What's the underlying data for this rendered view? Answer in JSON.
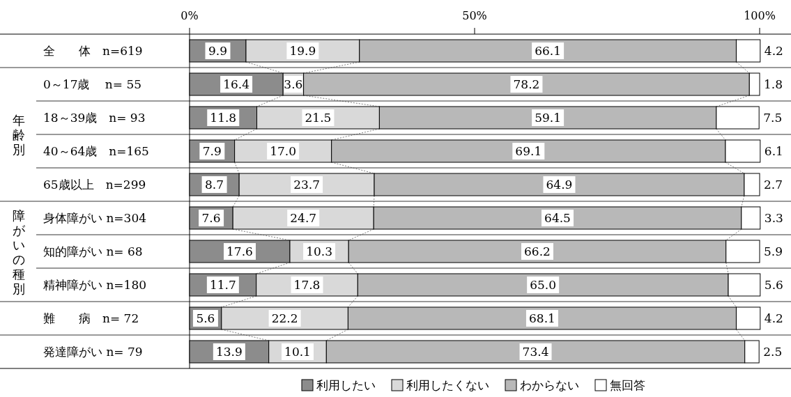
{
  "chart_data": {
    "type": "bar",
    "orientation": "horizontal",
    "stacked": true,
    "legend": "bottom",
    "categories": [
      "全　　体　n=619",
      "0～17歳　 n= 55",
      "18～39歳　n= 93",
      "40～64歳　n=165",
      "65歳以上　n=299",
      "身体障がい n=304",
      "知的障がい n= 68",
      "精神障がい n=180",
      "難　　病　n= 72",
      "発達障がい n= 79"
    ],
    "xlim": [
      0,
      100
    ],
    "xticks": [
      {
        "value": 0,
        "label": "0%"
      },
      {
        "value": 50,
        "label": "50%"
      },
      {
        "value": 100,
        "label": "100%"
      }
    ],
    "annotations": [
      "年齢別",
      "障がいの種別"
    ],
    "series": [
      {
        "name": "利用したい",
        "color": "#8c8c8c",
        "values": [
          9.9,
          16.4,
          11.8,
          7.9,
          8.7,
          7.6,
          17.6,
          11.7,
          5.6,
          13.9
        ],
        "value_labels": [
          "9.9",
          "16.4",
          "11.8",
          "7.9",
          "8.7",
          "7.6",
          "17.6",
          "11.7",
          "5.6",
          "13.9"
        ]
      },
      {
        "name": "利用したくない",
        "color": "#d9d9d9",
        "values": [
          19.9,
          3.6,
          21.5,
          17.0,
          23.7,
          24.7,
          10.3,
          17.8,
          22.2,
          10.1
        ],
        "value_labels": [
          "19.9",
          "3.6",
          "21.5",
          "17.0",
          "23.7",
          "24.7",
          "10.3",
          "17.8",
          "22.2",
          "10.1"
        ]
      },
      {
        "name": "わからない",
        "color": "#b8b8b8",
        "values": [
          66.1,
          78.2,
          59.1,
          69.1,
          64.9,
          64.5,
          66.2,
          65.0,
          68.1,
          73.4
        ],
        "value_labels": [
          "66.1",
          "78.2",
          "59.1",
          "69.1",
          "64.9",
          "64.5",
          "66.2",
          "65.0",
          "68.1",
          "73.4"
        ]
      },
      {
        "name": "無回答",
        "color": "#ffffff",
        "values": [
          4.2,
          1.8,
          7.5,
          6.1,
          2.7,
          3.3,
          5.9,
          5.6,
          4.2,
          2.5
        ],
        "value_labels": [
          "4.2",
          "1.8",
          "7.5",
          "6.1",
          "2.7",
          "3.3",
          "5.9",
          "5.6",
          "4.2",
          "2.5"
        ]
      }
    ]
  }
}
